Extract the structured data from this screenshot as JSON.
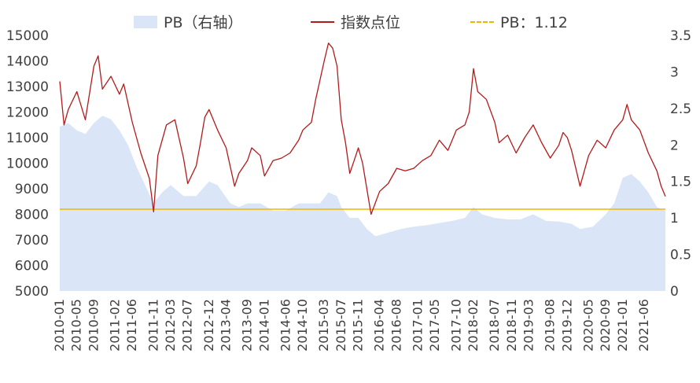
{
  "chart_data": {
    "type": "line",
    "title": "",
    "legend": {
      "placement": "top",
      "items": [
        {
          "label": "PB（右轴）",
          "kind": "area"
        },
        {
          "label": "指数点位",
          "kind": "line"
        },
        {
          "label": "PB：1.12",
          "kind": "dashed-line"
        }
      ]
    },
    "colors": {
      "pb_area": "#dae6f8",
      "index_line": "#b31b1b",
      "reference_line": "#f2b600",
      "axis_text": "#404040"
    },
    "x_tick_labels": [
      "2010-01",
      "2010-05",
      "2010-09",
      "2011-02",
      "2011-06",
      "2011-11",
      "2012-03",
      "2012-07",
      "2012-12",
      "2013-04",
      "2013-09",
      "2014-01",
      "2014-06",
      "2014-10",
      "2015-03",
      "2015-07",
      "2015-11",
      "2016-04",
      "2016-08",
      "2017-01",
      "2017-05",
      "2017-10",
      "2018-02",
      "2018-07",
      "2018-11",
      "2019-03",
      "2019-08",
      "2019-12",
      "2020-05",
      "2020-09",
      "2021-01",
      "2021-06"
    ],
    "y_left": {
      "min": 5000,
      "max": 15000,
      "ticks": [
        "5000",
        "6000",
        "7000",
        "8000",
        "9000",
        "10000",
        "11000",
        "12000",
        "13000",
        "14000",
        "15000"
      ]
    },
    "y_right": {
      "min": 0,
      "max": 3.5,
      "ticks": [
        "0",
        "0.5",
        "1",
        "1.5",
        "2",
        "2.5",
        "3",
        "3.5"
      ]
    },
    "grid": false,
    "reference_line": {
      "name": "PB：1.12",
      "axis": "right",
      "value": 1.12
    },
    "series": [
      {
        "name": "指数点位",
        "axis": "left",
        "x": [
          "2010-01",
          "2010-02",
          "2010-03",
          "2010-05",
          "2010-07",
          "2010-09",
          "2010-10",
          "2010-11",
          "2011-01",
          "2011-03",
          "2011-04",
          "2011-06",
          "2011-08",
          "2011-10",
          "2011-11",
          "2011-12",
          "2012-02",
          "2012-04",
          "2012-06",
          "2012-07",
          "2012-09",
          "2012-10",
          "2012-11",
          "2012-12",
          "2013-02",
          "2013-04",
          "2013-06",
          "2013-07",
          "2013-09",
          "2013-10",
          "2013-12",
          "2014-01",
          "2014-03",
          "2014-05",
          "2014-07",
          "2014-09",
          "2014-10",
          "2014-12",
          "2015-01",
          "2015-03",
          "2015-04",
          "2015-05",
          "2015-06",
          "2015-07",
          "2015-08",
          "2015-09",
          "2015-10",
          "2015-11",
          "2015-12",
          "2016-01",
          "2016-02",
          "2016-04",
          "2016-06",
          "2016-08",
          "2016-10",
          "2016-12",
          "2017-02",
          "2017-04",
          "2017-06",
          "2017-08",
          "2017-10",
          "2017-12",
          "2018-01",
          "2018-02",
          "2018-03",
          "2018-05",
          "2018-07",
          "2018-08",
          "2018-10",
          "2018-12",
          "2019-02",
          "2019-04",
          "2019-06",
          "2019-08",
          "2019-10",
          "2019-11",
          "2019-12",
          "2020-01",
          "2020-03",
          "2020-05",
          "2020-07",
          "2020-09",
          "2020-11",
          "2021-01",
          "2021-02",
          "2021-03",
          "2021-05",
          "2021-07",
          "2021-09",
          "2021-10",
          "2021-11"
        ],
        "values": [
          13200,
          11500,
          12100,
          12800,
          11700,
          13800,
          14200,
          12900,
          13400,
          12700,
          13100,
          11600,
          10400,
          9400,
          8100,
          10300,
          11500,
          11700,
          10200,
          9200,
          9900,
          10800,
          11800,
          12100,
          11300,
          10600,
          9100,
          9600,
          10100,
          10600,
          10300,
          9500,
          10100,
          10200,
          10400,
          10900,
          11300,
          11600,
          12500,
          14000,
          14700,
          14500,
          13800,
          11700,
          10800,
          9600,
          10100,
          10600,
          10000,
          9000,
          8000,
          8900,
          9200,
          9800,
          9700,
          9800,
          10100,
          10300,
          10900,
          10500,
          11300,
          11500,
          12000,
          13700,
          12800,
          12500,
          11600,
          10800,
          11100,
          10400,
          11000,
          11500,
          10800,
          10200,
          10700,
          11200,
          11000,
          10500,
          9100,
          10300,
          10900,
          10600,
          11300,
          11700,
          12300,
          11700,
          11300,
          10400,
          9700,
          9100,
          8700
        ]
      },
      {
        "name": "PB（右轴）",
        "axis": "right",
        "x": [
          "2010-01",
          "2010-03",
          "2010-05",
          "2010-07",
          "2010-09",
          "2010-11",
          "2011-01",
          "2011-03",
          "2011-05",
          "2011-07",
          "2011-09",
          "2011-11",
          "2012-01",
          "2012-03",
          "2012-06",
          "2012-09",
          "2012-12",
          "2013-02",
          "2013-05",
          "2013-07",
          "2013-09",
          "2013-12",
          "2014-03",
          "2014-06",
          "2014-09",
          "2014-12",
          "2015-02",
          "2015-04",
          "2015-06",
          "2015-07",
          "2015-09",
          "2015-11",
          "2016-01",
          "2016-03",
          "2016-06",
          "2016-09",
          "2016-12",
          "2017-03",
          "2017-06",
          "2017-09",
          "2017-12",
          "2018-02",
          "2018-04",
          "2018-07",
          "2018-10",
          "2019-01",
          "2019-04",
          "2019-07",
          "2019-10",
          "2020-01",
          "2020-03",
          "2020-06",
          "2020-09",
          "2020-11",
          "2021-01",
          "2021-03",
          "2021-05",
          "2021-07",
          "2021-09",
          "2021-11"
        ],
        "values": [
          2.25,
          2.3,
          2.2,
          2.15,
          2.3,
          2.4,
          2.35,
          2.2,
          2.0,
          1.7,
          1.45,
          1.2,
          1.35,
          1.45,
          1.3,
          1.3,
          1.5,
          1.45,
          1.2,
          1.15,
          1.2,
          1.2,
          1.1,
          1.1,
          1.2,
          1.2,
          1.2,
          1.35,
          1.3,
          1.15,
          1.0,
          1.0,
          0.85,
          0.75,
          0.8,
          0.85,
          0.88,
          0.9,
          0.93,
          0.96,
          1.0,
          1.15,
          1.05,
          1.0,
          0.98,
          0.98,
          1.05,
          0.96,
          0.95,
          0.92,
          0.85,
          0.88,
          1.05,
          1.2,
          1.55,
          1.6,
          1.5,
          1.35,
          1.15,
          1.1
        ]
      }
    ]
  }
}
